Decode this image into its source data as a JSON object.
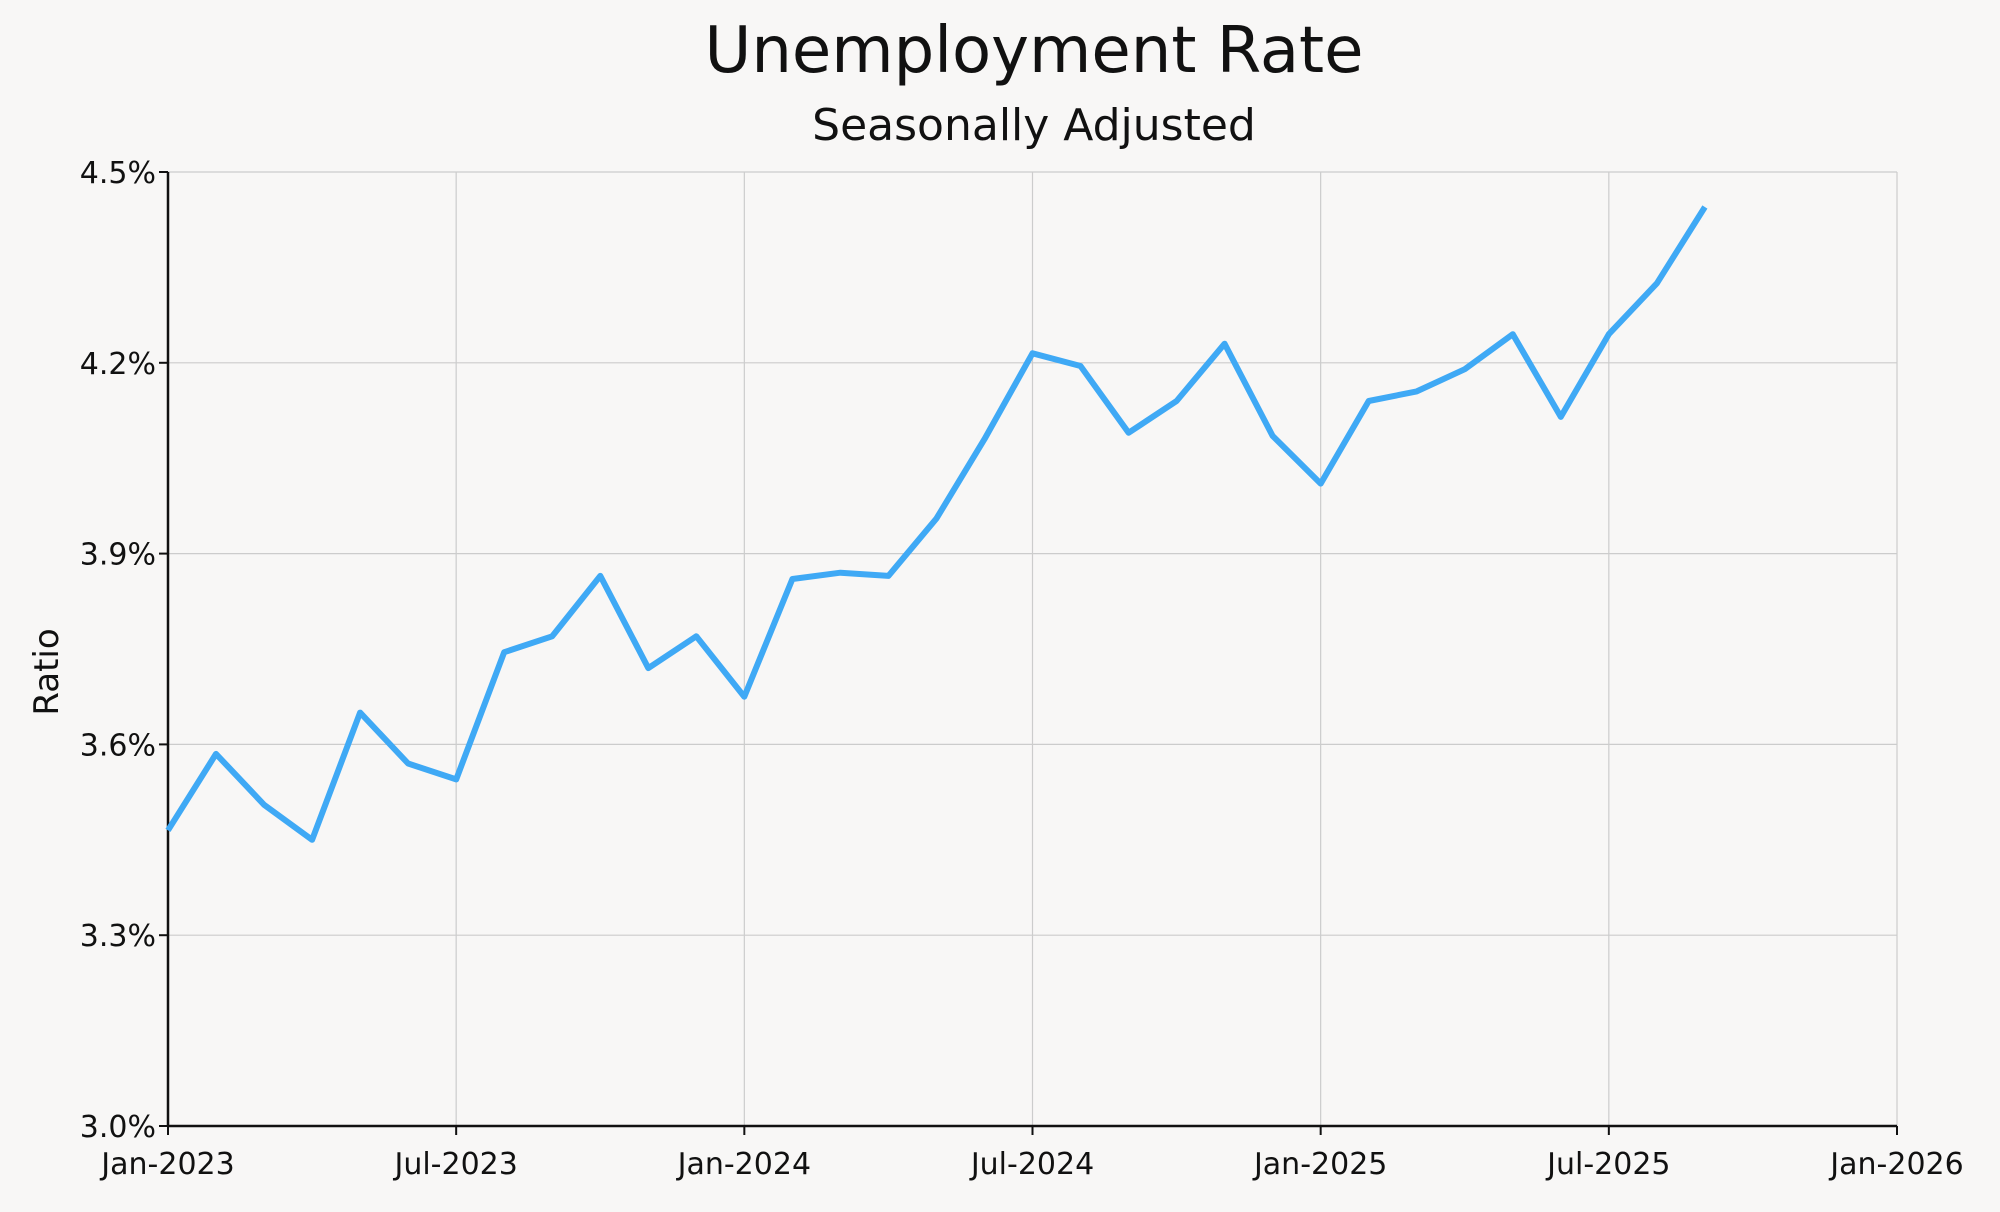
{
  "chart_data": {
    "type": "line",
    "title": "Unemployment Rate",
    "subtitle": "Seasonally Adjusted",
    "xlabel": "",
    "ylabel": "Ratio",
    "x_ticks": [
      "Jan-2023",
      "Jul-2023",
      "Jan-2024",
      "Jul-2024",
      "Jan-2025",
      "Jul-2025",
      "Jan-2026"
    ],
    "y_ticks": [
      "3.0%",
      "3.3%",
      "3.6%",
      "3.9%",
      "4.2%",
      "4.5%"
    ],
    "xlim": [
      "2023-01",
      "2026-01"
    ],
    "ylim": [
      3.0,
      4.5
    ],
    "grid": true,
    "legend": "none",
    "series": [
      {
        "color": "#3fa9f5",
        "x": [
          "2023-01",
          "2023-02",
          "2023-03",
          "2023-04",
          "2023-05",
          "2023-06",
          "2023-07",
          "2023-08",
          "2023-09",
          "2023-10",
          "2023-11",
          "2023-12",
          "2024-01",
          "2024-02",
          "2024-03",
          "2024-04",
          "2024-05",
          "2024-06",
          "2024-07",
          "2024-08",
          "2024-09",
          "2024-10",
          "2024-11",
          "2024-12",
          "2025-01",
          "2025-02",
          "2025-03",
          "2025-04",
          "2025-05",
          "2025-06",
          "2025-07",
          "2025-08",
          "2025-09"
        ],
        "values": [
          3.465,
          3.585,
          3.505,
          3.45,
          3.65,
          3.57,
          3.545,
          3.745,
          3.77,
          3.865,
          3.72,
          3.77,
          3.675,
          3.86,
          3.87,
          3.865,
          3.955,
          4.08,
          4.215,
          4.195,
          4.09,
          4.14,
          4.23,
          4.085,
          4.01,
          4.14,
          4.155,
          4.19,
          4.245,
          4.115,
          4.245,
          4.325,
          4.445
        ]
      }
    ]
  }
}
